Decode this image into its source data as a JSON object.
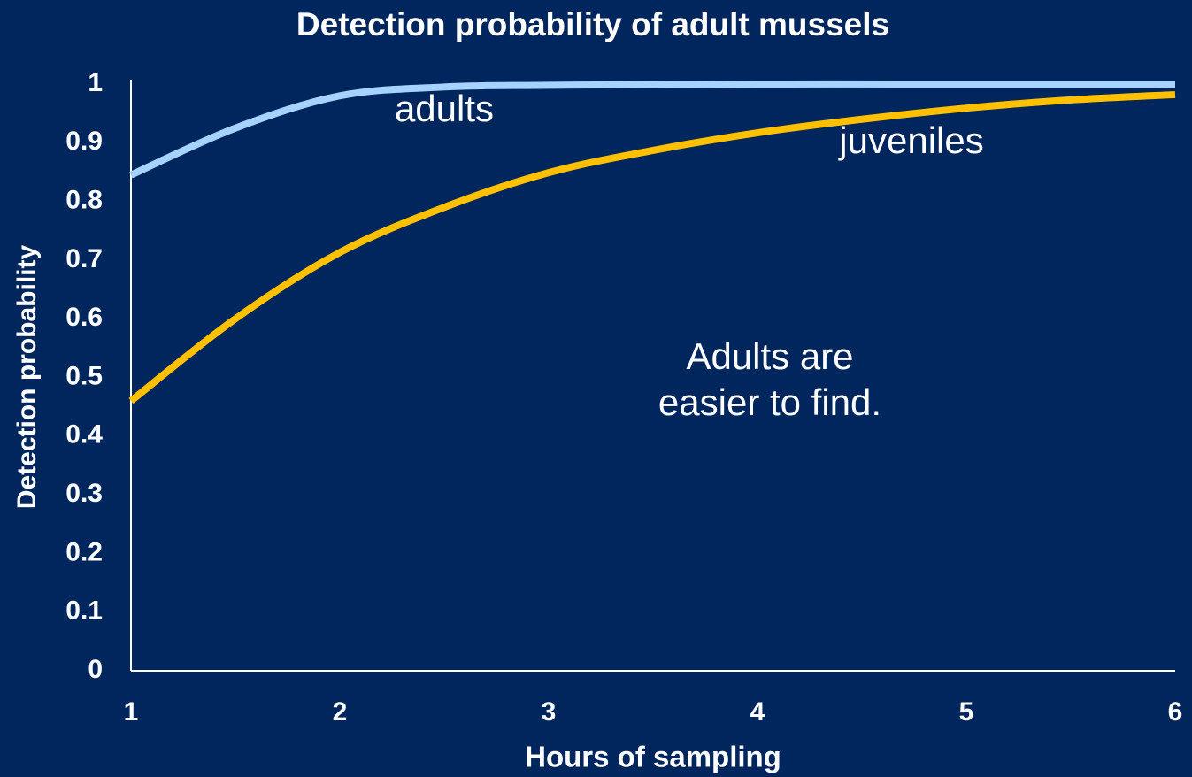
{
  "chart_data": {
    "type": "line",
    "title": "Detection probability of adult mussels",
    "x_label": "Hours of sampling",
    "y_label": "Detection probability",
    "xlim": [
      1,
      6
    ],
    "xticks": [
      1,
      2,
      3,
      4,
      5,
      6
    ],
    "ylim": [
      0,
      1
    ],
    "yticks": [
      0,
      0.1,
      0.2,
      0.3,
      0.4,
      0.5,
      0.6,
      0.7,
      0.8,
      0.9,
      1
    ],
    "grid": false,
    "series": [
      {
        "name": "adults",
        "color": "#a6d2ff",
        "x": [
          1,
          1.5,
          2,
          2.5,
          3,
          4,
          5,
          6
        ],
        "values": [
          0.845,
          0.925,
          0.98,
          0.995,
          0.998,
          1,
          1,
          1
        ]
      },
      {
        "name": "juveniles",
        "color": "#ffc000",
        "x": [
          1,
          1.5,
          2,
          2.5,
          3,
          3.5,
          4,
          4.5,
          5,
          5.5,
          6
        ],
        "values": [
          0.46,
          0.6,
          0.713,
          0.79,
          0.849,
          0.887,
          0.917,
          0.94,
          0.959,
          0.973,
          0.982
        ]
      }
    ],
    "annotations": [
      {
        "lines": [
          "Adults are",
          "easier to find."
        ]
      }
    ]
  }
}
